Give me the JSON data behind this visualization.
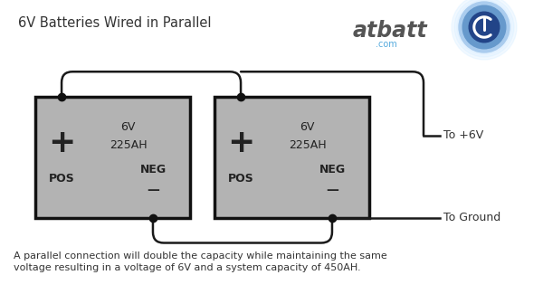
{
  "title": "6V Batteries Wired in Parallel",
  "description_line1": "A parallel connection will double the capacity while maintaining the same",
  "description_line2": "voltage resulting in a voltage of 6V and a system capacity of 450AH.",
  "battery_fill": "#b3b3b3",
  "battery_edge": "#111111",
  "bg_color": "#ffffff",
  "b1x": 0.065,
  "b1y": 0.33,
  "bw": 0.285,
  "bh": 0.41,
  "b2x": 0.395,
  "b2y": 0.33,
  "wire_color": "#1a1a1a",
  "dot_color": "#111111",
  "text_color": "#333333",
  "wire_lw": 1.8,
  "dot_ms": 6,
  "atbatt_color": "#555555",
  "com_color": "#55aadd"
}
